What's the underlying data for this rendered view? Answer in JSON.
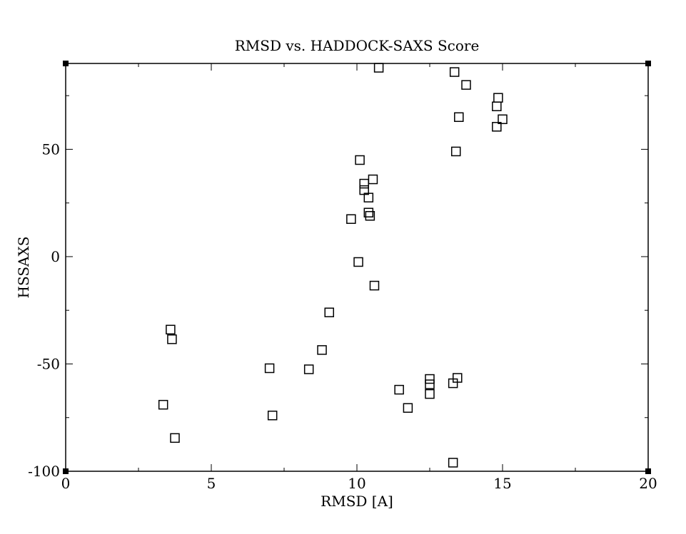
{
  "chart_data": {
    "type": "scatter",
    "title": "RMSD vs. HADDOCK-SAXS Score",
    "xlabel": "RMSD [A]",
    "ylabel": "HSSAXS",
    "xlim": [
      0,
      20
    ],
    "ylim": [
      -100,
      90
    ],
    "x_ticks": [
      0,
      5,
      10,
      15,
      20
    ],
    "y_ticks": [
      -100,
      -50,
      0,
      50
    ],
    "x_tick_labels": [
      "0",
      "5",
      "10",
      "15",
      "20"
    ],
    "y_tick_labels": [
      "-100",
      "-50",
      "0",
      "50"
    ],
    "grid": false,
    "marker": "open-square",
    "series": [
      {
        "points": [
          [
            10.75,
            88
          ],
          [
            13.35,
            86
          ],
          [
            13.75,
            80
          ],
          [
            14.85,
            74
          ],
          [
            14.8,
            70
          ],
          [
            13.5,
            65
          ],
          [
            15.0,
            64
          ],
          [
            14.8,
            60.5
          ],
          [
            13.4,
            49
          ],
          [
            10.1,
            45
          ],
          [
            10.55,
            36
          ],
          [
            10.25,
            34
          ],
          [
            10.25,
            31
          ],
          [
            10.4,
            27.5
          ],
          [
            10.4,
            20.5
          ],
          [
            10.45,
            19
          ],
          [
            9.8,
            17.5
          ],
          [
            10.05,
            -2.5
          ],
          [
            10.6,
            -13.5
          ],
          [
            9.05,
            -26
          ],
          [
            3.6,
            -34
          ],
          [
            3.65,
            -38.5
          ],
          [
            8.8,
            -43.5
          ],
          [
            7.0,
            -52
          ],
          [
            8.35,
            -52.5
          ],
          [
            12.5,
            -57
          ],
          [
            13.45,
            -56.5
          ],
          [
            12.5,
            -59.5
          ],
          [
            13.3,
            -59
          ],
          [
            11.45,
            -62
          ],
          [
            12.5,
            -64
          ],
          [
            11.75,
            -70.5
          ],
          [
            3.35,
            -69
          ],
          [
            7.1,
            -74
          ],
          [
            3.75,
            -84.5
          ],
          [
            13.3,
            -96
          ]
        ]
      }
    ]
  }
}
